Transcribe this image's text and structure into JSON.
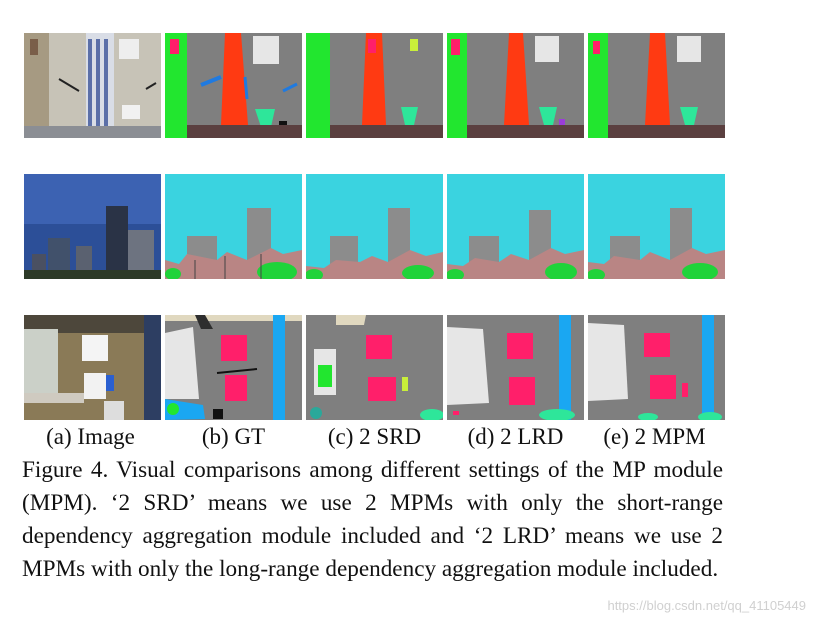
{
  "columns": [
    {
      "key": "image",
      "label": "(a) Image"
    },
    {
      "key": "gt",
      "label": "(b) GT"
    },
    {
      "key": "srd",
      "label": "(c) 2 SRD"
    },
    {
      "key": "lrd",
      "label": "(d) 2 LRD"
    },
    {
      "key": "mpm",
      "label": "(e) 2 MPM"
    }
  ],
  "caption": "Figure 4. Visual comparisons among different settings of the MP module (MPM). ‘2 SRD’ means we use 2 MPMs with only the short-range dependency aggregation module included and ‘2 LRD’ means we use 2 MPMs with only the long-range dependency aggregation module included.",
  "watermark": "https://blog.csdn.net/qq_41105449",
  "colors": {
    "floor_gray": "#7f7f7f",
    "sky": "#3ad3e0",
    "wall_green": "#22e62f",
    "door_red": "#ff3a12",
    "pink": "#ff1f6a",
    "building": "#8c8c8c",
    "ground_brown": "#b98584",
    "blue_pole": "#1aa7f2"
  }
}
